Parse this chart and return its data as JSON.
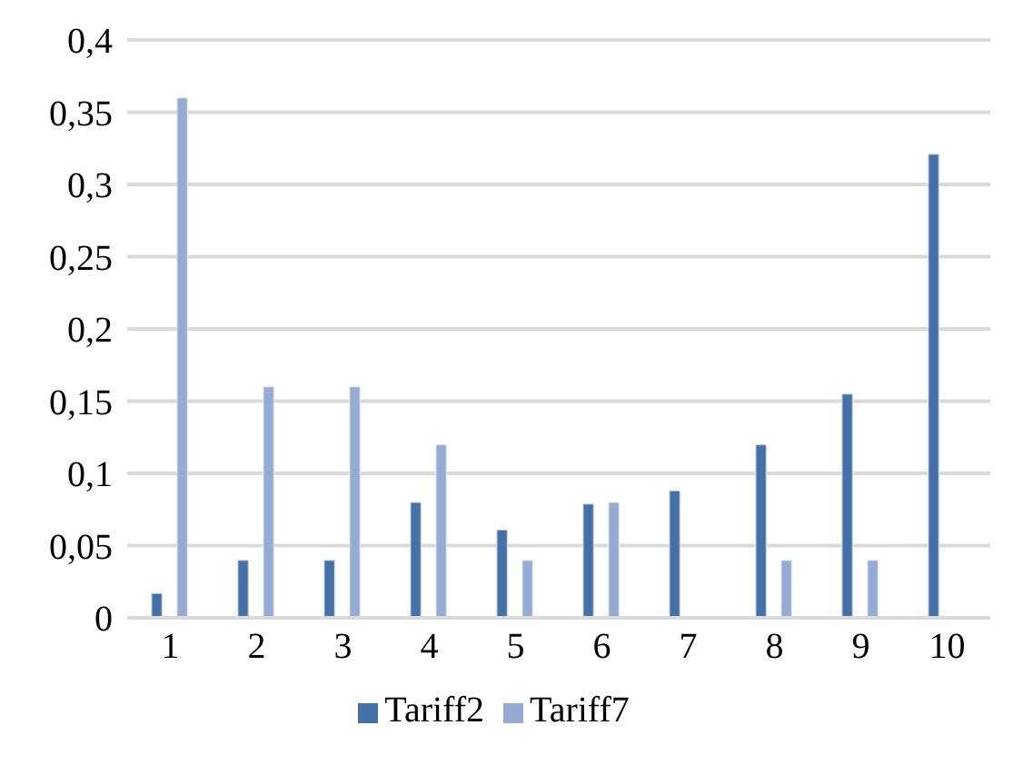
{
  "chart_data": {
    "type": "bar",
    "categories": [
      "1",
      "2",
      "3",
      "4",
      "5",
      "6",
      "7",
      "8",
      "9",
      "10"
    ],
    "series": [
      {
        "name": "Tariff2",
        "color": "#4472a8",
        "values": [
          0.017,
          0.04,
          0.04,
          0.08,
          0.061,
          0.079,
          0.088,
          0.12,
          0.155,
          0.321
        ]
      },
      {
        "name": "Tariff7",
        "color": "#95abd3",
        "values": [
          0.36,
          0.16,
          0.16,
          0.12,
          0.04,
          0.08,
          null,
          0.04,
          0.04,
          null
        ]
      }
    ],
    "ylim": [
      0,
      0.4
    ],
    "yticks": [
      {
        "value": 0,
        "label": "0"
      },
      {
        "value": 0.05,
        "label": "0,05"
      },
      {
        "value": 0.1,
        "label": "0,1"
      },
      {
        "value": 0.15,
        "label": "0,15"
      },
      {
        "value": 0.2,
        "label": "0,2"
      },
      {
        "value": 0.25,
        "label": "0,25"
      },
      {
        "value": 0.3,
        "label": "0,3"
      },
      {
        "value": 0.35,
        "label": "0,35"
      },
      {
        "value": 0.4,
        "label": "0,4"
      }
    ],
    "grid": "y",
    "legend": "bottom"
  }
}
